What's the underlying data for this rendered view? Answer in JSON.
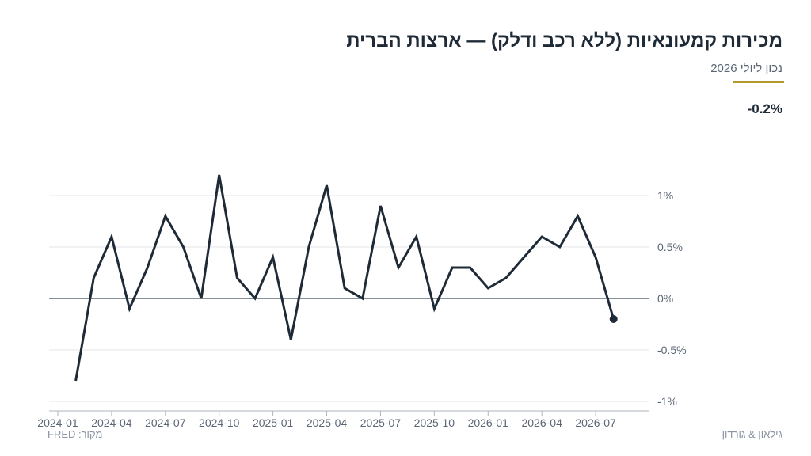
{
  "header": {
    "title": "מכירות קמעונאיות (ללא רכב ודלק) — ארצות הברית",
    "subtitle": "נכון ליולי 2026",
    "latest_value": "-0.2%"
  },
  "footer": {
    "source": "מקור: FRED",
    "credit": "גילאון & גורדון"
  },
  "colors": {
    "line": "#1f2a37",
    "grid": "#e3e6ea",
    "zero_line": "#5b6b78",
    "accent": "#b39a2e"
  },
  "chart_data": {
    "type": "line",
    "title": "מכירות קמעונאיות (ללא רכב ודלק) — ארצות הברית",
    "subtitle": "נכון ליולי 2026",
    "xlabel": "",
    "ylabel": "",
    "x": [
      "2024-02",
      "2024-03",
      "2024-04",
      "2024-05",
      "2024-06",
      "2024-07",
      "2024-08",
      "2024-09",
      "2024-10",
      "2024-11",
      "2024-12",
      "2025-01",
      "2025-02",
      "2025-03",
      "2025-04",
      "2025-05",
      "2025-06",
      "2025-07",
      "2025-08",
      "2025-09",
      "2025-10",
      "2025-11",
      "2025-12",
      "2026-01",
      "2026-02",
      "2026-03",
      "2026-04",
      "2026-05",
      "2026-06",
      "2026-07",
      "2026-08"
    ],
    "series": [
      {
        "values": [
          -0.8,
          0.2,
          0.6,
          -0.1,
          0.3,
          0.8,
          0.5,
          0.0,
          1.2,
          0.2,
          0.0,
          0.4,
          -0.4,
          0.5,
          1.1,
          0.1,
          0.0,
          0.9,
          0.3,
          0.6,
          -0.1,
          0.3,
          0.3,
          0.1,
          0.2,
          0.4,
          0.6,
          0.5,
          0.8,
          0.4,
          -0.2
        ]
      }
    ],
    "x_ticks": [
      "2024-01",
      "2024-04",
      "2024-07",
      "2024-10",
      "2025-01",
      "2025-04",
      "2025-07",
      "2025-10",
      "2026-01",
      "2026-04",
      "2026-07"
    ],
    "y_ticks": [
      {
        "value": 1,
        "label": "1%"
      },
      {
        "value": 0.5,
        "label": "0.5%"
      },
      {
        "value": 0,
        "label": "0%"
      },
      {
        "value": -0.5,
        "label": "-0.5%"
      },
      {
        "value": -1,
        "label": "-1%"
      }
    ],
    "xlim": [
      "2024-01",
      "2026-10"
    ],
    "ylim": [
      -1.05,
      1.3
    ],
    "grid": true,
    "y_axis_side": "right",
    "last_point_marker": true
  }
}
